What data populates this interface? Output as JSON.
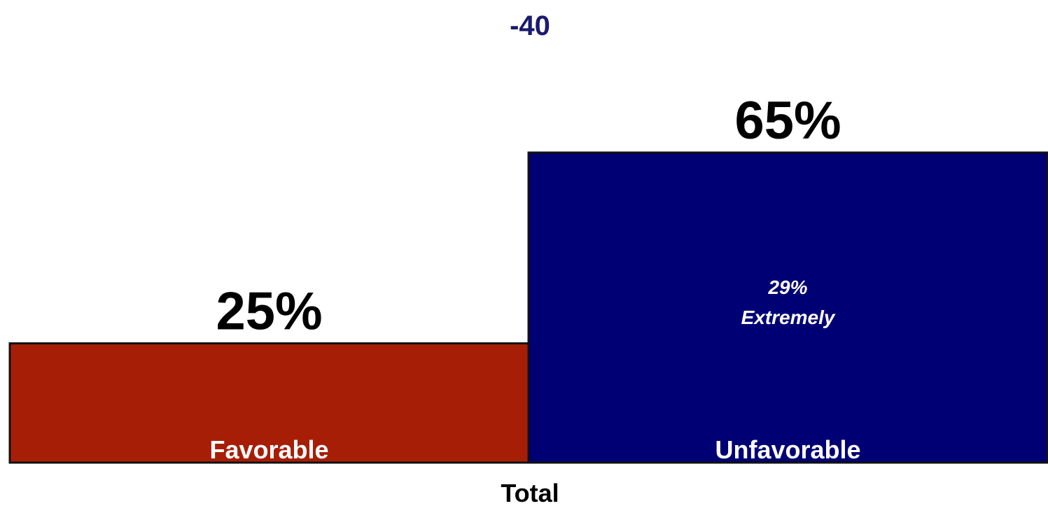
{
  "chart_data": {
    "type": "bar",
    "net_value": "-40",
    "categories": [
      "Favorable",
      "Unfavorable"
    ],
    "values": [
      25,
      65
    ],
    "value_labels": [
      "25%",
      "65%"
    ],
    "inner_annotation": {
      "category": "Unfavorable",
      "line1": "29%",
      "line2": "Extremely"
    },
    "xlabel": "Total",
    "ylabel": "",
    "ylim": [
      0,
      65
    ],
    "grid": false,
    "legend": "none",
    "colors": {
      "Favorable": "#a71e07",
      "Unfavorable": "#000075",
      "net_value_text": "#1a1a6e",
      "bar_outline": "#111111",
      "value_label_text": "#000000",
      "in_bar_text": "#ffffff"
    }
  }
}
